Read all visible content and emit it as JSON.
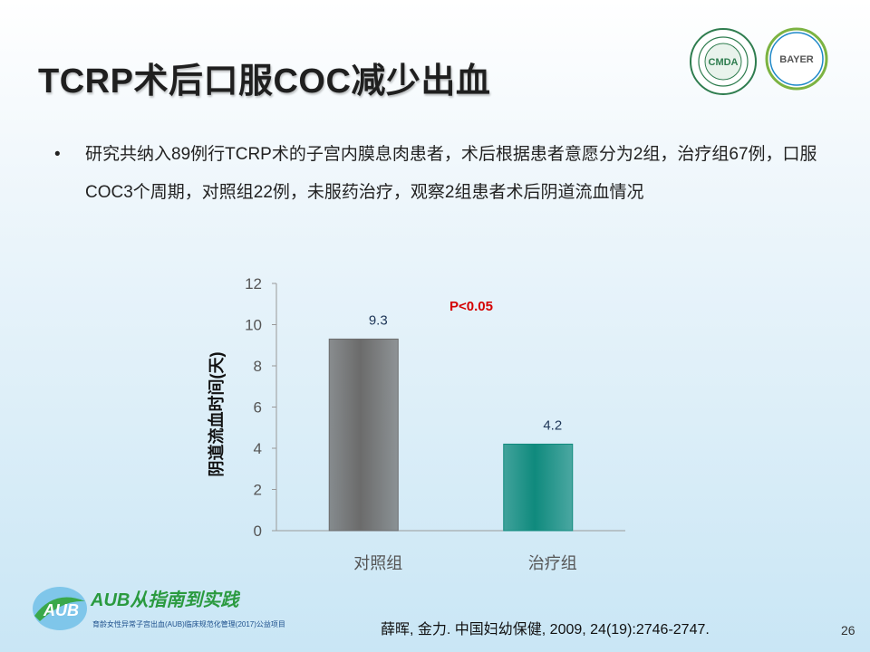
{
  "title": "TCRP术后口服COC减少出血",
  "bullet": {
    "marker": "•",
    "text": "研究共纳入89例行TCRP术的子宫内膜息肉患者，术后根据患者意愿分为2组，治疗组67例，口服COC3个周期，对照组22例，未服药治疗，观察2组患者术后阴道流血情况"
  },
  "logos": {
    "cmda_text": "CMDA",
    "bayer_text": "BAYER",
    "aub_main": "AUB从指南到实践",
    "aub_sub": "育龄女性异常子宫出血(AUB)临床规范化管理(2017)公益项目"
  },
  "chart_data": {
    "type": "bar",
    "categories": [
      "对照组",
      "治疗组"
    ],
    "values": [
      9.3,
      4.2
    ],
    "value_labels": [
      "9.3",
      "4.2"
    ],
    "ylabel": "阴道流血时间(天)",
    "xlabel": "",
    "ylim": [
      0,
      12
    ],
    "yticks": [
      0,
      2,
      4,
      6,
      8,
      10,
      12
    ],
    "annotation": "P<0.05",
    "grid": false,
    "colors": [
      "#6b6b6b",
      "#0f8a7d"
    ]
  },
  "citation": "薛晖, 金力. 中国妇幼保健, 2009, 24(19):2746-2747.",
  "page_number": "26"
}
